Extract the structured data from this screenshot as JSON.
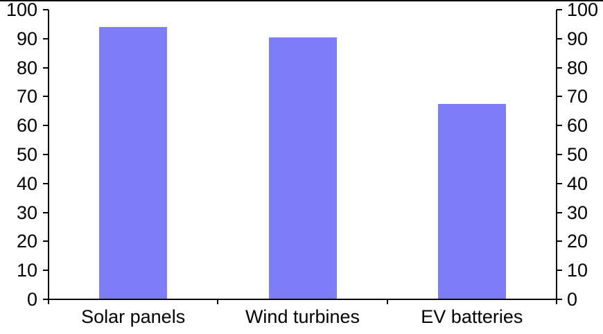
{
  "chart_data": {
    "type": "bar",
    "title": "",
    "xlabel": "",
    "ylabel": "",
    "categories": [
      "Solar panels",
      "Wind turbines",
      "EV batteries"
    ],
    "values": [
      94,
      90.5,
      67.5
    ],
    "ylim": [
      0,
      100
    ],
    "ytick_step": 10,
    "yticks": [
      "0",
      "10",
      "20",
      "30",
      "40",
      "50",
      "60",
      "70",
      "80",
      "90",
      "100"
    ],
    "dual_y_axis": true,
    "grid": false,
    "legend": null,
    "bar_color": "#7d7df8",
    "axis_color": "#000000",
    "background_color": "#ffffff"
  }
}
